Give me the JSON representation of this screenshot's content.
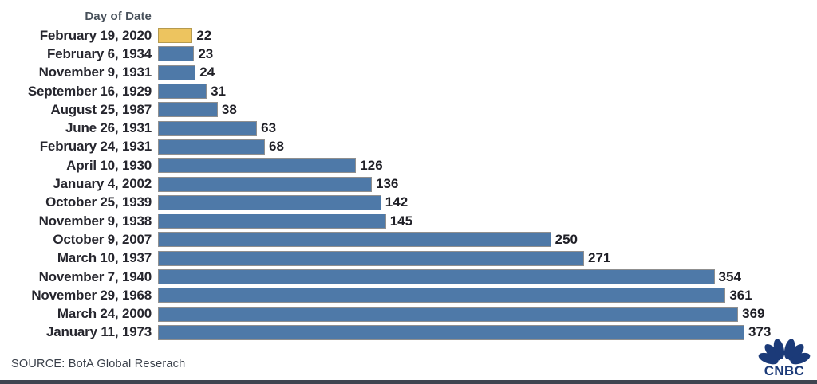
{
  "chart_data": {
    "type": "bar",
    "orientation": "horizontal",
    "title": "Day of Date",
    "categories": [
      "February 19, 2020",
      "February 6, 1934",
      "November 9, 1931",
      "September 16, 1929",
      "August 25, 1987",
      "June 26, 1931",
      "February 24, 1931",
      "April 10, 1930",
      "January 4, 2002",
      "October 25, 1939",
      "November 9, 1938",
      "October 9, 2007",
      "March 10, 1937",
      "November 7, 1940",
      "November 29, 1968",
      "March 24, 2000",
      "January 11, 1973"
    ],
    "values": [
      22,
      23,
      24,
      31,
      38,
      63,
      68,
      126,
      136,
      142,
      145,
      250,
      271,
      354,
      361,
      369,
      373
    ],
    "value_labels_shown": true,
    "xlim": [
      0,
      380
    ],
    "grid": false,
    "legend": false,
    "highlight_index": 0,
    "highlight_category": "February 19, 2020",
    "colors": {
      "bar": "#4e79a8",
      "bar_border": "#8f8f8f",
      "highlight": "#edc45f",
      "highlight_border": "#b59a4e"
    }
  },
  "footer": {
    "source": "SOURCE: BofA Global Reserach"
  },
  "branding": {
    "logo_text": "CNBC",
    "logo_icon": "cnbc-peacock-icon",
    "logo_color": "#1b3a78"
  },
  "page": {
    "background": "#ffffff",
    "bottom_bar_color": "#3f4450"
  }
}
